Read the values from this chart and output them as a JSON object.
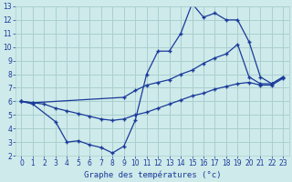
{
  "title": "Graphe des températures (°c)",
  "bg_color": "#ceeaea",
  "grid_color": "#aacfcf",
  "line_color": "#1a3a9a",
  "xlim": [
    -0.5,
    23.5
  ],
  "ylim": [
    2,
    13
  ],
  "xticks": [
    0,
    1,
    2,
    3,
    4,
    5,
    6,
    7,
    8,
    9,
    10,
    11,
    12,
    13,
    14,
    15,
    16,
    17,
    18,
    19,
    20,
    21,
    22,
    23
  ],
  "yticks": [
    2,
    3,
    4,
    5,
    6,
    7,
    8,
    9,
    10,
    11,
    12,
    13
  ],
  "line1_x": [
    0,
    1,
    3,
    4,
    5,
    6,
    7,
    8,
    9,
    10,
    11,
    12,
    13,
    14,
    15,
    16,
    17,
    18,
    19,
    20,
    21,
    22,
    23
  ],
  "line1_y": [
    6.0,
    5.8,
    4.5,
    3.0,
    3.1,
    2.8,
    2.6,
    2.2,
    2.7,
    4.6,
    8.0,
    9.7,
    9.7,
    11.0,
    13.2,
    12.2,
    12.5,
    12.0,
    12.0,
    10.4,
    7.8,
    7.3,
    7.8
  ],
  "line2_x": [
    0,
    1,
    9,
    10,
    11,
    12,
    13,
    14,
    15,
    16,
    17,
    18,
    19,
    20,
    21,
    22,
    23
  ],
  "line2_y": [
    6.0,
    5.9,
    6.3,
    6.8,
    7.2,
    7.4,
    7.6,
    8.0,
    8.3,
    8.8,
    9.2,
    9.5,
    10.2,
    7.8,
    7.3,
    7.3,
    7.8
  ],
  "line3_x": [
    0,
    1,
    2,
    3,
    4,
    5,
    6,
    7,
    8,
    9,
    10,
    11,
    12,
    13,
    14,
    15,
    16,
    17,
    18,
    19,
    20,
    21,
    22,
    23
  ],
  "line3_y": [
    6.0,
    5.9,
    5.8,
    5.5,
    5.3,
    5.1,
    4.9,
    4.7,
    4.6,
    4.7,
    5.0,
    5.2,
    5.5,
    5.8,
    6.1,
    6.4,
    6.6,
    6.9,
    7.1,
    7.3,
    7.4,
    7.2,
    7.2,
    7.7
  ]
}
